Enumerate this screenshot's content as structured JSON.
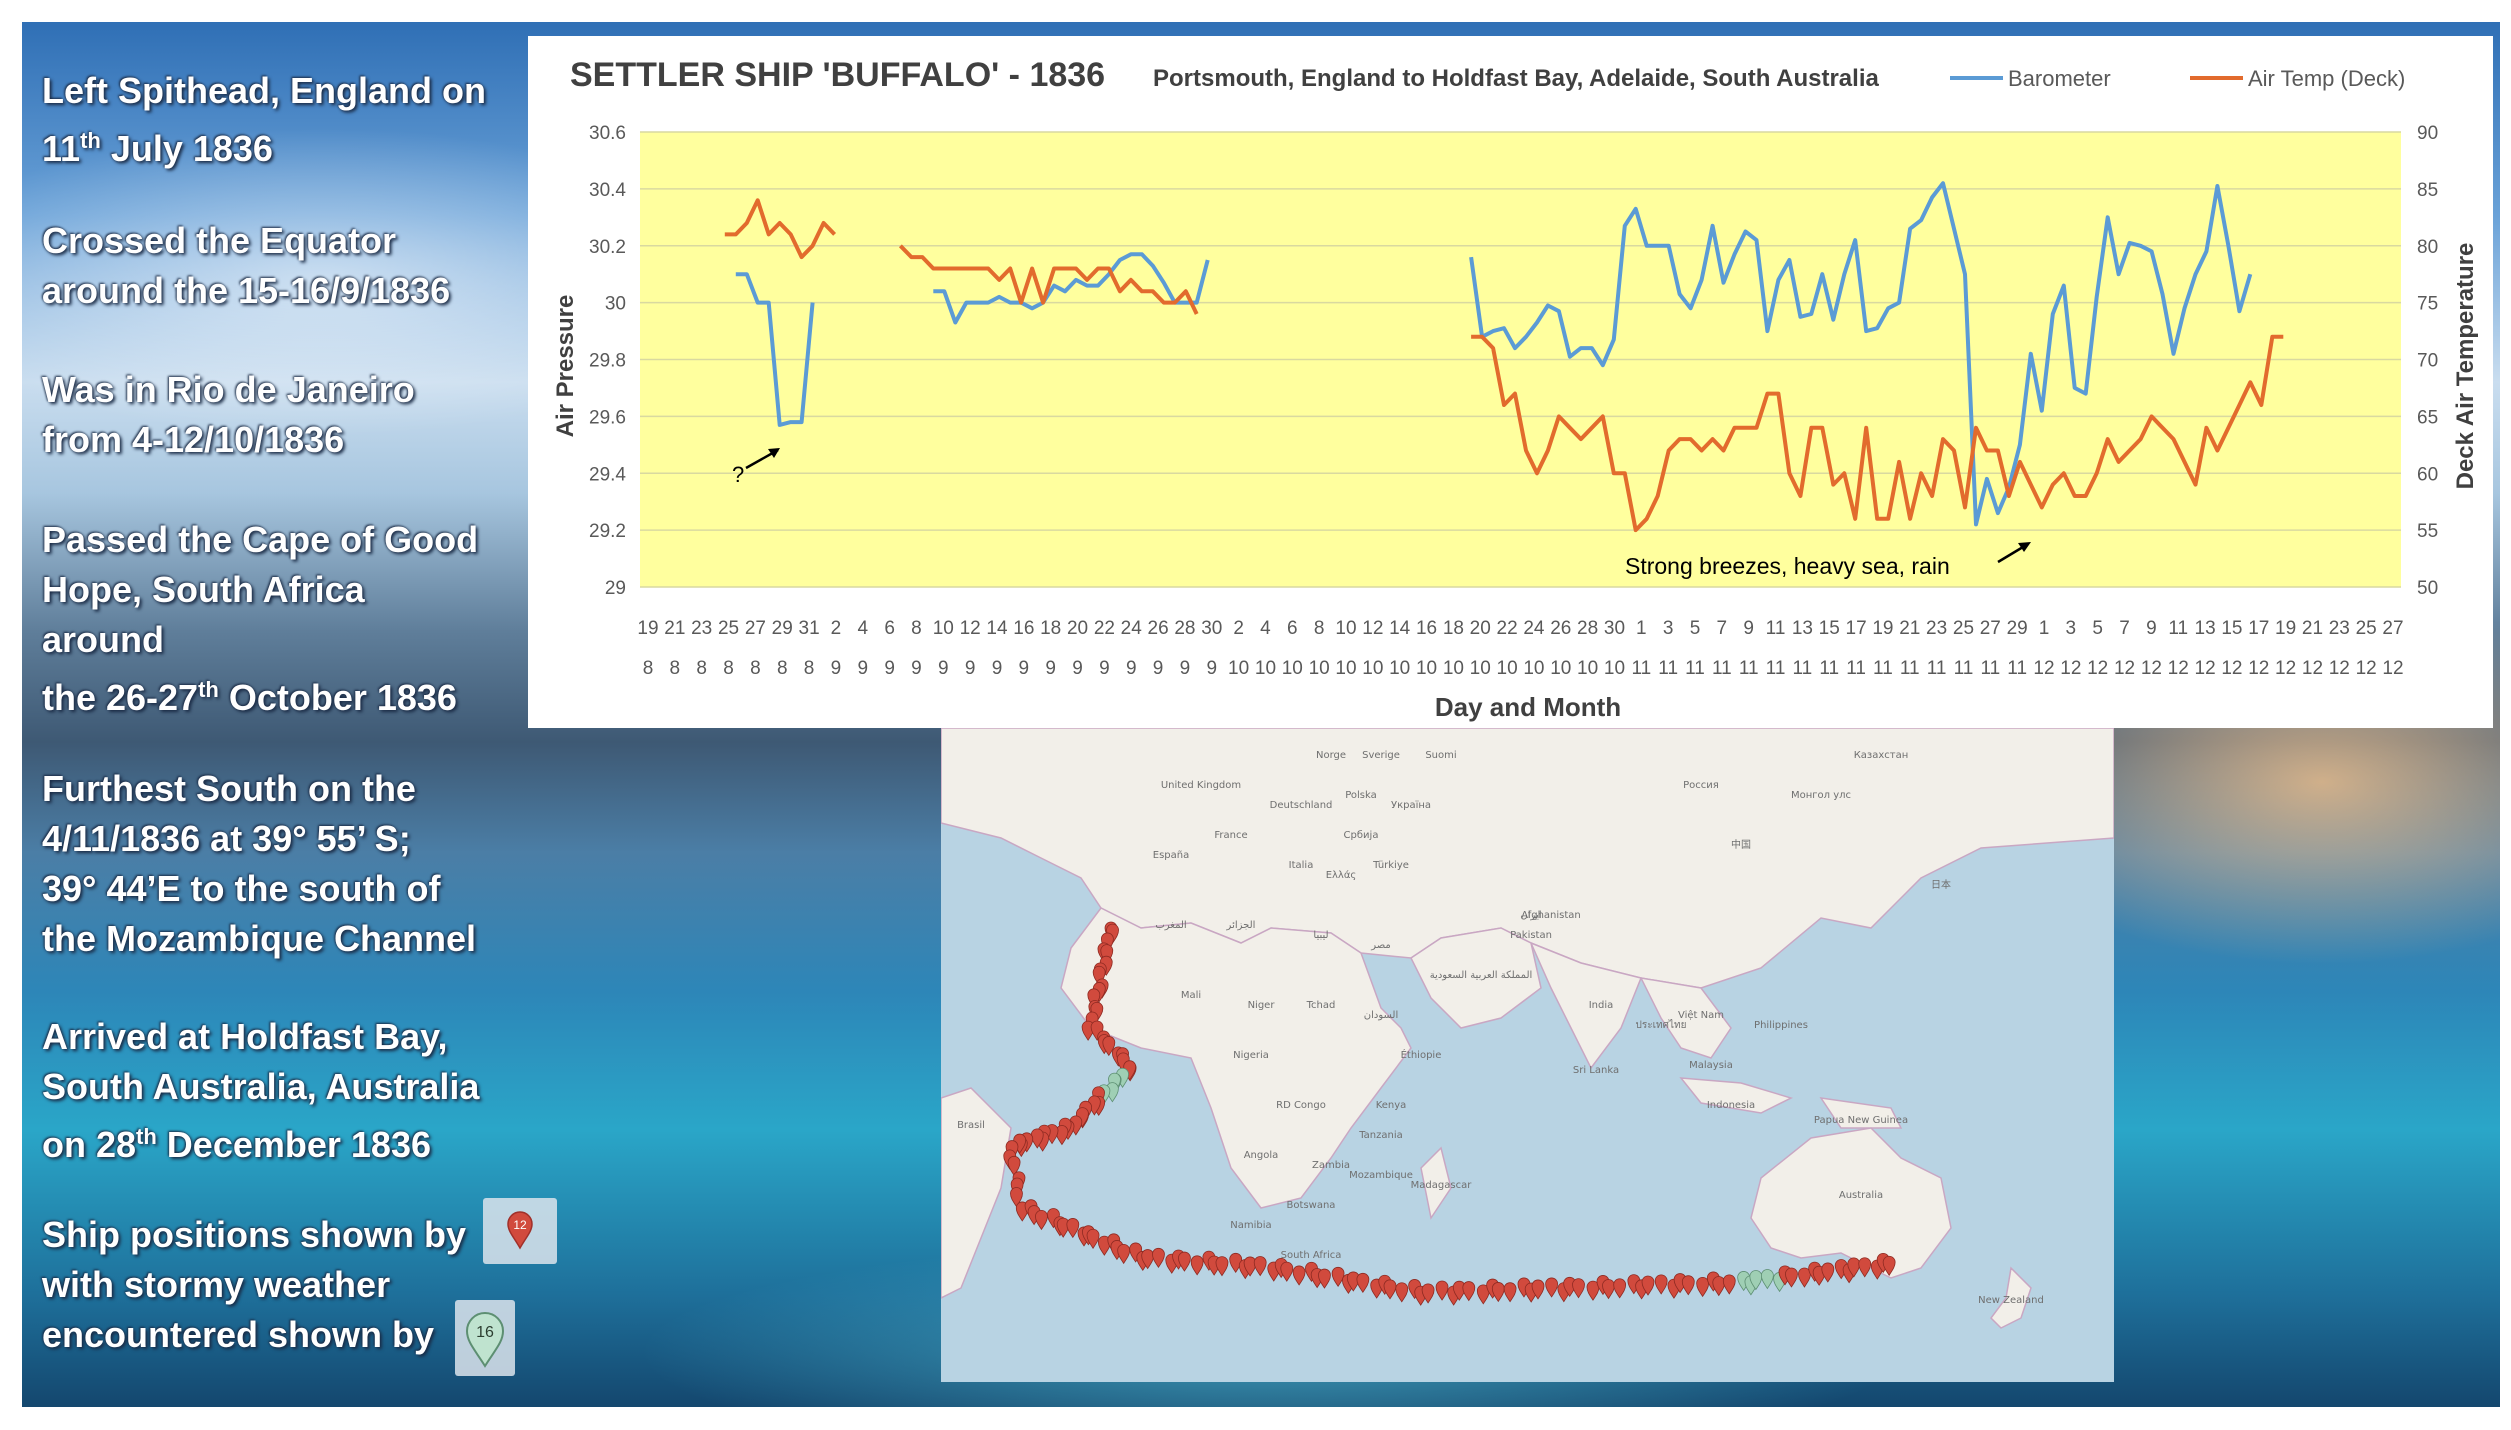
{
  "notes": {
    "n1_l1": "Left Spithead, England on",
    "n1_l2_a": "11",
    "n1_l2_sup": "th",
    "n1_l2_b": " July 1836",
    "n2_l1": "Crossed the Equator",
    "n2_l2": "around the 15-16/9/1836",
    "n3_l1": "Was in Rio de Janeiro",
    "n3_l2": "from 4-12/10/1836",
    "n4_l1": "Passed the Cape of Good",
    "n4_l2": "Hope, South Africa",
    "n4_l3": "around",
    "n4_l4_a": "the 26-27",
    "n4_l4_sup": "th",
    "n4_l4_b": " October 1836",
    "n5_l1": "Furthest South on the",
    "n5_l2": "4/11/1836 at 39° 55’ S;",
    "n5_l3": "39° 44’E to the south of",
    "n5_l4": "the Mozambique Channel",
    "n6_l1": "Arrived at Holdfast Bay,",
    "n6_l2": "South Australia, Australia",
    "n6_l3_a": "on 28",
    "n6_l3_sup": "th",
    "n6_l3_b": " December 1836",
    "n7_l1": "Ship positions shown by",
    "n7_l2": "with stormy weather",
    "n7_l3": "encountered shown by",
    "marker_normal_label": "12",
    "marker_storm_label": "16"
  },
  "chart_data": {
    "type": "line",
    "title": "SETTLER SHIP 'BUFFALO' - 1836",
    "subtitle": "Portsmouth, England to Holdfast Bay, Adelaide, South Australia",
    "xlabel": "Day and Month",
    "ylabel": "Air Pressure",
    "y2label": "Deck Air Temperature",
    "ylim": [
      29,
      30.6
    ],
    "y2lim": [
      50,
      90
    ],
    "yticks": [
      "30.6",
      "30.4",
      "30.2",
      "30",
      "29.8",
      "29.6",
      "29.4",
      "29.2",
      "29"
    ],
    "y2ticks": [
      "90",
      "85",
      "80",
      "75",
      "70",
      "65",
      "60",
      "55",
      "50"
    ],
    "xtick_days": [
      "19",
      "21",
      "23",
      "25",
      "27",
      "29",
      "31",
      "2",
      "4",
      "6",
      "8",
      "10",
      "12",
      "14",
      "16",
      "18",
      "20",
      "22",
      "24",
      "26",
      "28",
      "30",
      "2",
      "4",
      "6",
      "8",
      "10",
      "12",
      "14",
      "16",
      "18",
      "20",
      "22",
      "24",
      "26",
      "28",
      "30",
      "1",
      "3",
      "5",
      "7",
      "9",
      "11",
      "13",
      "15",
      "17",
      "19",
      "21",
      "23",
      "25",
      "27",
      "29",
      "1",
      "3",
      "5",
      "7",
      "9",
      "11",
      "13",
      "15",
      "17",
      "19",
      "21",
      "23",
      "25",
      "27"
    ],
    "xtick_months": [
      "8",
      "8",
      "8",
      "8",
      "8",
      "8",
      "8",
      "9",
      "9",
      "9",
      "9",
      "9",
      "9",
      "9",
      "9",
      "9",
      "9",
      "9",
      "9",
      "9",
      "9",
      "9",
      "10",
      "10",
      "10",
      "10",
      "10",
      "10",
      "10",
      "10",
      "10",
      "10",
      "10",
      "10",
      "10",
      "10",
      "10",
      "11",
      "11",
      "11",
      "11",
      "11",
      "11",
      "11",
      "11",
      "11",
      "11",
      "11",
      "11",
      "11",
      "11",
      "11",
      "12",
      "12",
      "12",
      "12",
      "12",
      "12",
      "12",
      "12",
      "12",
      "12",
      "12",
      "12",
      "12",
      "12"
    ],
    "legend_position": "top-right",
    "grid": true,
    "annotations": [
      "?",
      "Strong breezes, heavy sea, rain"
    ],
    "series": [
      {
        "name": "Barometer",
        "color": "#5b9bd5",
        "axis": "left",
        "segments": [
          {
            "start_day": 8,
            "values": [
              30.1,
              30.1,
              30.0,
              30.0,
              29.57,
              29.58,
              29.58,
              30.0
            ]
          },
          {
            "start_day": 26,
            "values": [
              30.04,
              30.04,
              29.93,
              30.0,
              30.0,
              30.0,
              30.02,
              30.0,
              30.0,
              29.98,
              30.0,
              30.06,
              30.04,
              30.08,
              30.06,
              30.06,
              30.1,
              30.15,
              30.17,
              30.17,
              30.13,
              30.07,
              30.0,
              30.0,
              30.0,
              30.15
            ]
          },
          {
            "start_day": 75,
            "values": [
              30.16,
              29.88,
              29.9,
              29.91,
              29.84,
              29.88,
              29.93,
              29.99,
              29.97,
              29.81,
              29.84,
              29.84,
              29.78,
              29.87,
              30.27,
              30.33,
              30.2,
              30.2,
              30.2,
              30.03,
              29.98,
              30.08,
              30.27,
              30.07,
              30.17,
              30.25,
              30.22,
              29.9,
              30.08,
              30.15,
              29.95,
              29.96,
              30.1,
              29.94,
              30.1,
              30.22,
              29.9,
              29.91,
              29.98,
              30.0,
              30.26,
              30.29,
              30.37,
              30.42,
              30.26,
              30.1,
              29.22,
              29.38,
              29.26,
              29.35,
              29.5,
              29.82,
              29.62,
              29.96,
              30.06,
              29.7,
              29.68,
              30.02,
              30.3,
              30.1,
              30.21,
              30.2,
              30.18,
              30.03,
              29.82,
              29.98,
              30.1,
              30.18,
              30.41,
              30.2,
              29.97,
              30.1
            ]
          }
        ]
      },
      {
        "name": "Air Temp (Deck)",
        "color": "#e26b2d",
        "axis": "right",
        "segments": [
          {
            "start_day": 7,
            "values": [
              81,
              81,
              82,
              84,
              81,
              82,
              81,
              79,
              80,
              82,
              81
            ]
          },
          {
            "start_day": 23,
            "values": [
              80,
              79,
              79,
              78,
              78,
              78,
              78,
              78,
              78,
              77,
              78,
              75,
              78,
              75,
              78,
              78,
              78,
              77,
              78,
              78,
              76,
              77,
              76,
              76,
              75,
              75,
              76,
              74
            ]
          },
          {
            "start_day": 75,
            "values": [
              72,
              72,
              71,
              66,
              67,
              62,
              60,
              62,
              65,
              64,
              63,
              64,
              65,
              60,
              60,
              55,
              56,
              58,
              62,
              63,
              63,
              62,
              63,
              62,
              64,
              64,
              64,
              67,
              67,
              60,
              58,
              64,
              64,
              59,
              60,
              56,
              64,
              56,
              56,
              61,
              56,
              60,
              58,
              63,
              62,
              57,
              64,
              62,
              62,
              58,
              61,
              59,
              57,
              59,
              60,
              58,
              58,
              60,
              63,
              61,
              62,
              63,
              65,
              64,
              63,
              61,
              59,
              64,
              62,
              64,
              66,
              68,
              66,
              72,
              72
            ]
          }
        ]
      }
    ]
  },
  "map": {
    "labels": [
      "Россия",
      "Казахстан",
      "Монгол улс",
      "中国",
      "日本",
      "المملكة العربية السعودية",
      "ایران",
      "India",
      "Türkiye",
      "Ελλάς",
      "España",
      "Italia",
      "France",
      "Deutschland",
      "United Kingdom",
      "المغرب",
      "الجزائر",
      "ليبيا",
      "مصر",
      "Mali",
      "Niger",
      "Tchad",
      "السودان",
      "Nigeria",
      "Éthiopie",
      "Kenya",
      "RD Congo",
      "Angola",
      "Tanzania",
      "Namibia",
      "Botswana",
      "South Africa",
      "Madagascar",
      "Mozambique",
      "Zambia",
      "Indonesia",
      "Papua New Guinea",
      "Australia",
      "New Zealand",
      "Brasil",
      "Philippines",
      "Việt Nam",
      "ประเทศไทย",
      "Malaysia",
      "Pakistan",
      "Afghanistan",
      "Србија",
      "Polska",
      "Україна",
      "Sverige",
      "Suomi",
      "Norge",
      "Sri Lanka"
    ]
  },
  "colors": {
    "barometer": "#5b9bd5",
    "air_temp": "#e26b2d",
    "plot_bg": "#ffff9e",
    "gridline": "#d9d9a0",
    "map_ocean": "#b8d3e3",
    "map_land": "#f2efe9",
    "map_border": "#c9a7c3",
    "marker": "#d14a3d",
    "storm_marker": "#9fcfb4"
  }
}
